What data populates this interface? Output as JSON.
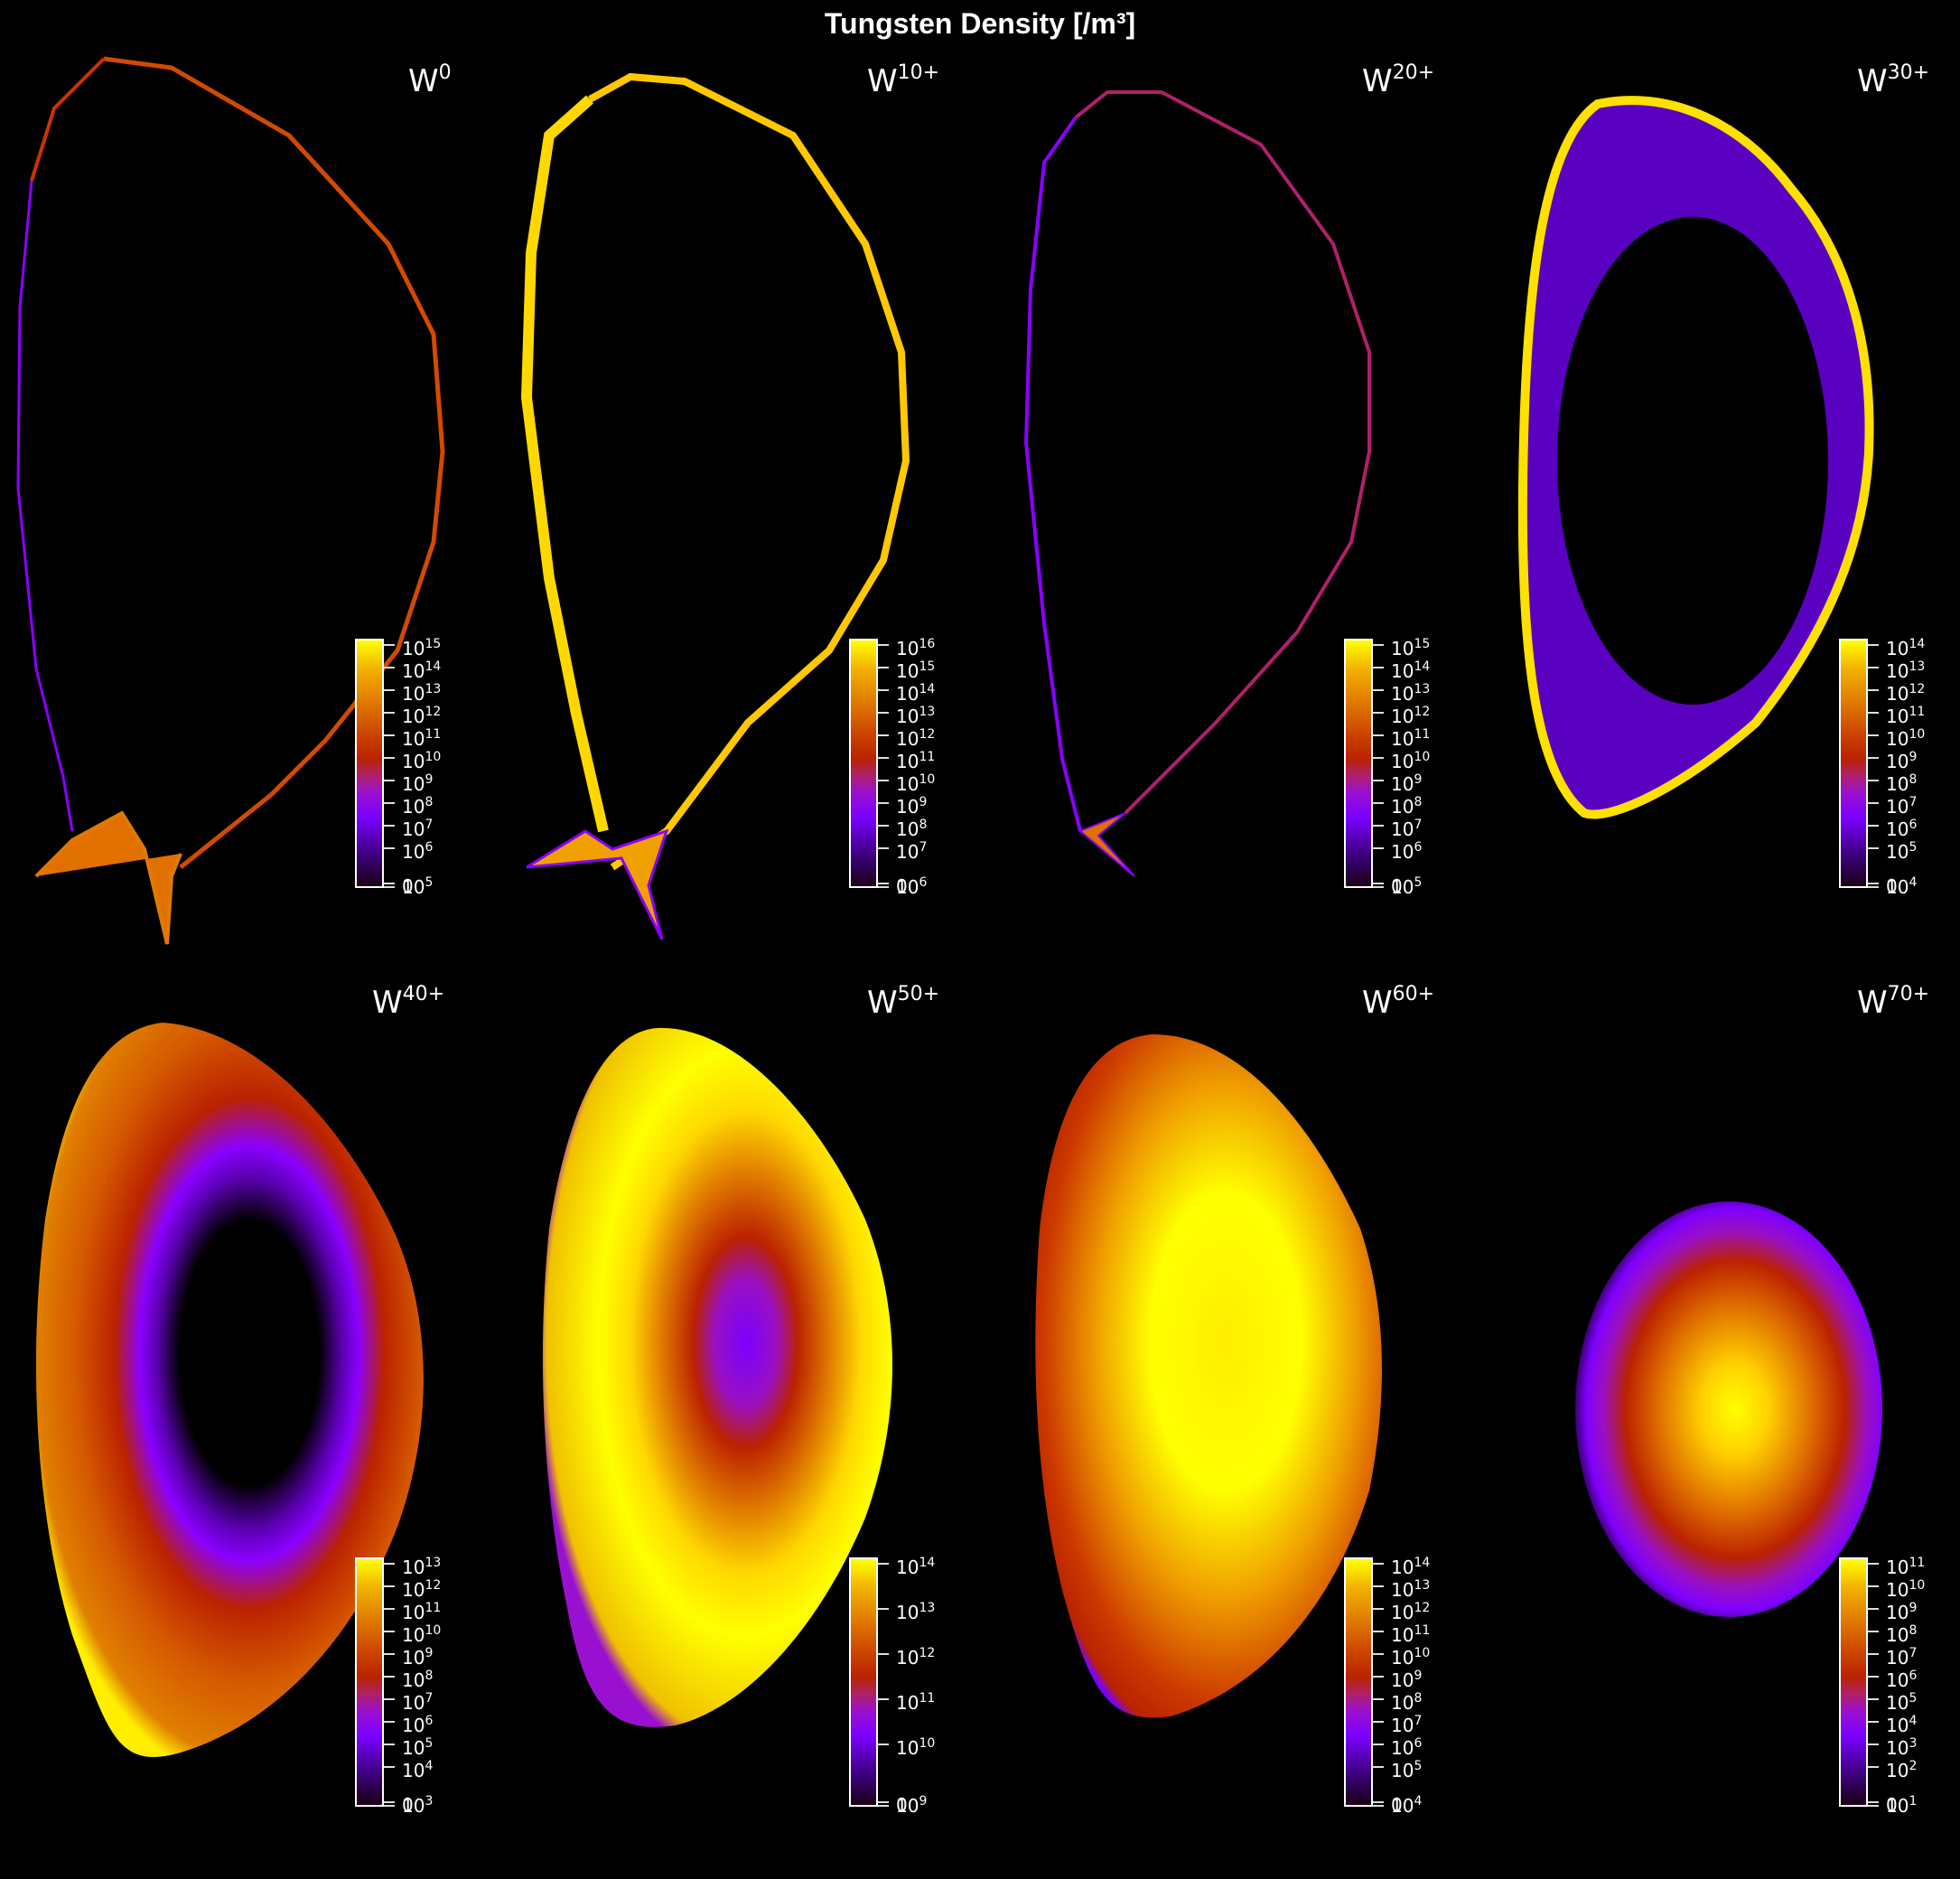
{
  "title": "Tungsten Density [/m³]",
  "chart_data": {
    "type": "heatmap",
    "title": "Tungsten Density [/m³]",
    "colormap": "gnuplot2-like (black → purple → red → orange → yellow)",
    "scale": "symlog (0 plus log decades)",
    "panels": [
      {
        "label": "W0",
        "base": "W",
        "charge": "0",
        "cbar_ticks": [
          "0",
          "10^5",
          "10^6",
          "10^7",
          "10^8",
          "10^9",
          "10^10",
          "10^11",
          "10^12",
          "10^13",
          "10^14",
          "10^15"
        ]
      },
      {
        "label": "W10+",
        "base": "W",
        "charge": "10+",
        "cbar_ticks": [
          "0",
          "10^6",
          "10^7",
          "10^8",
          "10^9",
          "10^10",
          "10^11",
          "10^12",
          "10^13",
          "10^14",
          "10^15",
          "10^16"
        ]
      },
      {
        "label": "W20+",
        "base": "W",
        "charge": "20+",
        "cbar_ticks": [
          "0",
          "10^5",
          "10^6",
          "10^7",
          "10^8",
          "10^9",
          "10^10",
          "10^11",
          "10^12",
          "10^13",
          "10^14",
          "10^15"
        ]
      },
      {
        "label": "W30+",
        "base": "W",
        "charge": "30+",
        "cbar_ticks": [
          "0",
          "10^4",
          "10^5",
          "10^6",
          "10^7",
          "10^8",
          "10^9",
          "10^10",
          "10^11",
          "10^12",
          "10^13",
          "10^14"
        ]
      },
      {
        "label": "W40+",
        "base": "W",
        "charge": "40+",
        "cbar_ticks": [
          "0",
          "10^3",
          "10^4",
          "10^5",
          "10^6",
          "10^7",
          "10^8",
          "10^9",
          "10^10",
          "10^11",
          "10^12",
          "10^13"
        ]
      },
      {
        "label": "W50+",
        "base": "W",
        "charge": "50+",
        "cbar_ticks": [
          "0",
          "10^9",
          "10^10",
          "10^11",
          "10^12",
          "10^13",
          "10^14"
        ]
      },
      {
        "label": "W60+",
        "base": "W",
        "charge": "60+",
        "cbar_ticks": [
          "0",
          "10^4",
          "10^5",
          "10^6",
          "10^7",
          "10^8",
          "10^9",
          "10^10",
          "10^11",
          "10^12",
          "10^13",
          "10^14"
        ]
      },
      {
        "label": "W70+",
        "base": "W",
        "charge": "70+",
        "cbar_ticks": [
          "0",
          "10^1",
          "10^2",
          "10^3",
          "10^4",
          "10^5",
          "10^6",
          "10^7",
          "10^8",
          "10^9",
          "10^10",
          "10^11"
        ]
      }
    ],
    "grid": false,
    "legend": "per-panel colorbar, bottom-right"
  },
  "panels": [
    {
      "base": "W",
      "charge": "0",
      "ticks": [
        {
          "m": "0",
          "e": ""
        },
        {
          "m": "10",
          "e": "5"
        },
        {
          "m": "10",
          "e": "6"
        },
        {
          "m": "10",
          "e": "7"
        },
        {
          "m": "10",
          "e": "8"
        },
        {
          "m": "10",
          "e": "9"
        },
        {
          "m": "10",
          "e": "10"
        },
        {
          "m": "10",
          "e": "11"
        },
        {
          "m": "10",
          "e": "12"
        },
        {
          "m": "10",
          "e": "13"
        },
        {
          "m": "10",
          "e": "14"
        },
        {
          "m": "10",
          "e": "15"
        }
      ]
    },
    {
      "base": "W",
      "charge": "10+",
      "ticks": [
        {
          "m": "0",
          "e": ""
        },
        {
          "m": "10",
          "e": "6"
        },
        {
          "m": "10",
          "e": "7"
        },
        {
          "m": "10",
          "e": "8"
        },
        {
          "m": "10",
          "e": "9"
        },
        {
          "m": "10",
          "e": "10"
        },
        {
          "m": "10",
          "e": "11"
        },
        {
          "m": "10",
          "e": "12"
        },
        {
          "m": "10",
          "e": "13"
        },
        {
          "m": "10",
          "e": "14"
        },
        {
          "m": "10",
          "e": "15"
        },
        {
          "m": "10",
          "e": "16"
        }
      ]
    },
    {
      "base": "W",
      "charge": "20+",
      "ticks": [
        {
          "m": "0",
          "e": ""
        },
        {
          "m": "10",
          "e": "5"
        },
        {
          "m": "10",
          "e": "6"
        },
        {
          "m": "10",
          "e": "7"
        },
        {
          "m": "10",
          "e": "8"
        },
        {
          "m": "10",
          "e": "9"
        },
        {
          "m": "10",
          "e": "10"
        },
        {
          "m": "10",
          "e": "11"
        },
        {
          "m": "10",
          "e": "12"
        },
        {
          "m": "10",
          "e": "13"
        },
        {
          "m": "10",
          "e": "14"
        },
        {
          "m": "10",
          "e": "15"
        }
      ]
    },
    {
      "base": "W",
      "charge": "30+",
      "ticks": [
        {
          "m": "0",
          "e": ""
        },
        {
          "m": "10",
          "e": "4"
        },
        {
          "m": "10",
          "e": "5"
        },
        {
          "m": "10",
          "e": "6"
        },
        {
          "m": "10",
          "e": "7"
        },
        {
          "m": "10",
          "e": "8"
        },
        {
          "m": "10",
          "e": "9"
        },
        {
          "m": "10",
          "e": "10"
        },
        {
          "m": "10",
          "e": "11"
        },
        {
          "m": "10",
          "e": "12"
        },
        {
          "m": "10",
          "e": "13"
        },
        {
          "m": "10",
          "e": "14"
        }
      ]
    },
    {
      "base": "W",
      "charge": "40+",
      "ticks": [
        {
          "m": "0",
          "e": ""
        },
        {
          "m": "10",
          "e": "3"
        },
        {
          "m": "10",
          "e": "4"
        },
        {
          "m": "10",
          "e": "5"
        },
        {
          "m": "10",
          "e": "6"
        },
        {
          "m": "10",
          "e": "7"
        },
        {
          "m": "10",
          "e": "8"
        },
        {
          "m": "10",
          "e": "9"
        },
        {
          "m": "10",
          "e": "10"
        },
        {
          "m": "10",
          "e": "11"
        },
        {
          "m": "10",
          "e": "12"
        },
        {
          "m": "10",
          "e": "13"
        }
      ]
    },
    {
      "base": "W",
      "charge": "50+",
      "ticks": [
        {
          "m": "0",
          "e": ""
        },
        {
          "m": "10",
          "e": "9"
        },
        {
          "m": "10",
          "e": "10"
        },
        {
          "m": "10",
          "e": "11"
        },
        {
          "m": "10",
          "e": "12"
        },
        {
          "m": "10",
          "e": "13"
        },
        {
          "m": "10",
          "e": "14"
        }
      ]
    },
    {
      "base": "W",
      "charge": "60+",
      "ticks": [
        {
          "m": "0",
          "e": ""
        },
        {
          "m": "10",
          "e": "4"
        },
        {
          "m": "10",
          "e": "5"
        },
        {
          "m": "10",
          "e": "6"
        },
        {
          "m": "10",
          "e": "7"
        },
        {
          "m": "10",
          "e": "8"
        },
        {
          "m": "10",
          "e": "9"
        },
        {
          "m": "10",
          "e": "10"
        },
        {
          "m": "10",
          "e": "11"
        },
        {
          "m": "10",
          "e": "12"
        },
        {
          "m": "10",
          "e": "13"
        },
        {
          "m": "10",
          "e": "14"
        }
      ]
    },
    {
      "base": "W",
      "charge": "70+",
      "ticks": [
        {
          "m": "0",
          "e": ""
        },
        {
          "m": "10",
          "e": "1"
        },
        {
          "m": "10",
          "e": "2"
        },
        {
          "m": "10",
          "e": "3"
        },
        {
          "m": "10",
          "e": "4"
        },
        {
          "m": "10",
          "e": "5"
        },
        {
          "m": "10",
          "e": "6"
        },
        {
          "m": "10",
          "e": "7"
        },
        {
          "m": "10",
          "e": "8"
        },
        {
          "m": "10",
          "e": "9"
        },
        {
          "m": "10",
          "e": "10"
        },
        {
          "m": "10",
          "e": "11"
        }
      ]
    }
  ]
}
